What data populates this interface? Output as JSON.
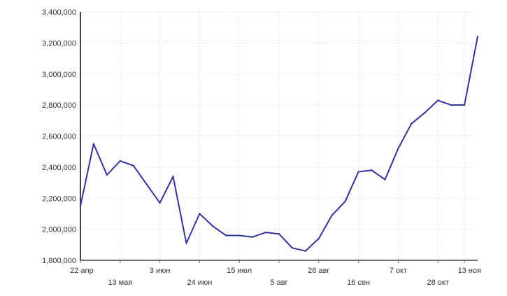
{
  "chart_data": {
    "type": "line",
    "title": "",
    "xlabel": "",
    "ylabel": "",
    "grid": true,
    "legend": "none",
    "ylim": [
      1800000,
      3400000
    ],
    "y_ticks": [
      1800000,
      2000000,
      2200000,
      2400000,
      2600000,
      2800000,
      3000000,
      3200000,
      3400000
    ],
    "y_tick_labels": [
      "1,800,000",
      "2,000,000",
      "2,200,000",
      "2,400,000",
      "2,600,000",
      "2,800,000",
      "3,000,000",
      "3,200,000",
      "3,400,000"
    ],
    "x_ticks": [
      {
        "label": "22 апр",
        "week": 0,
        "row": 0
      },
      {
        "label": "13 мая",
        "week": 3,
        "row": 1
      },
      {
        "label": "3 июн",
        "week": 6,
        "row": 0
      },
      {
        "label": "24 июн",
        "week": 9,
        "row": 1
      },
      {
        "label": "15 июл",
        "week": 12,
        "row": 0
      },
      {
        "label": "5 авг",
        "week": 15,
        "row": 1
      },
      {
        "label": "26 авг",
        "week": 18,
        "row": 0
      },
      {
        "label": "16 сен",
        "week": 21,
        "row": 1
      },
      {
        "label": "7 окт",
        "week": 24,
        "row": 0
      },
      {
        "label": "28 окт",
        "week": 27,
        "row": 1
      },
      {
        "label": "13 ноя",
        "week": 29,
        "row": 0
      }
    ],
    "series_color": "#333399",
    "series": [
      {
        "values": [
          2150000,
          2550000,
          2350000,
          2440000,
          2410000,
          2290000,
          2170000,
          2340000,
          1910000,
          2100000,
          2020000,
          1960000,
          1960000,
          1950000,
          1980000,
          1970000,
          1880000,
          1860000,
          1940000,
          2090000,
          2180000,
          2370000,
          2380000,
          2320000,
          2520000,
          2680000,
          2750000,
          2830000,
          2800000,
          2800000,
          3240000
        ]
      }
    ]
  }
}
